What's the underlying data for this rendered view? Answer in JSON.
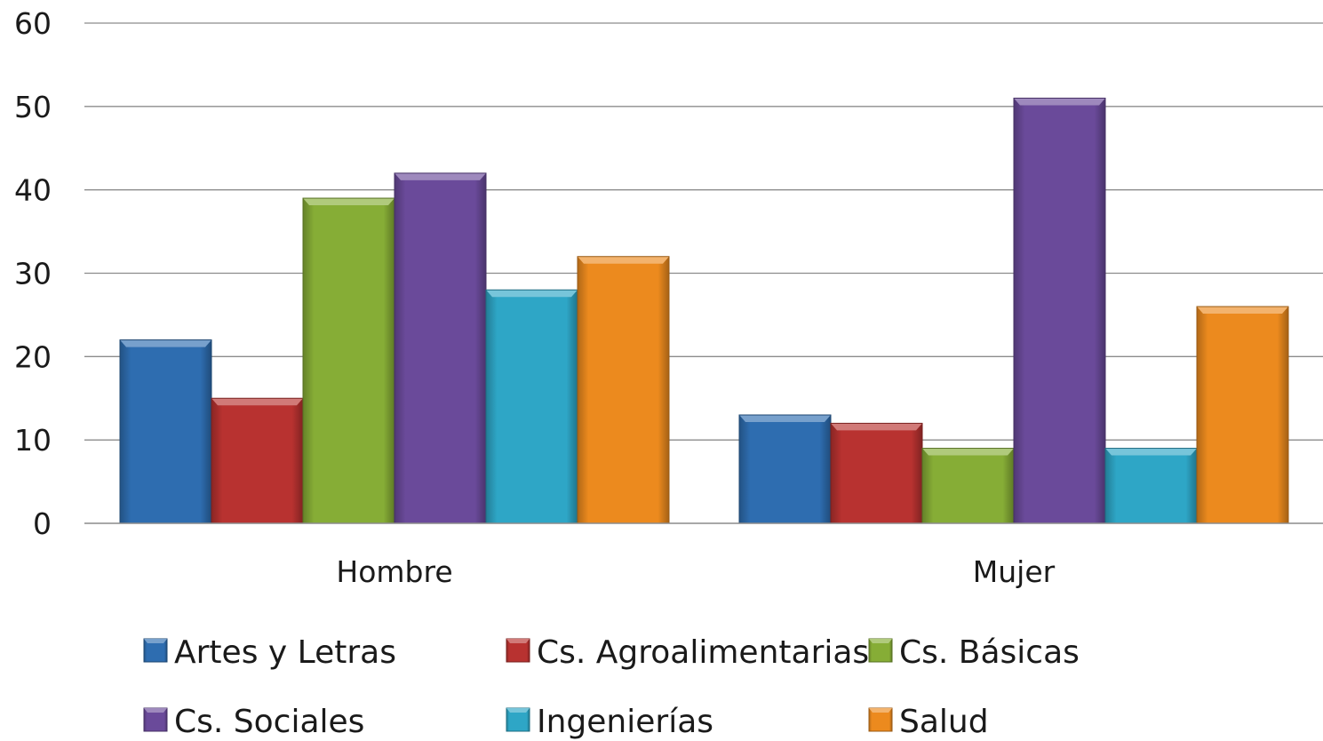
{
  "chart_data": {
    "type": "bar",
    "title": "",
    "xlabel": "",
    "ylabel": "",
    "categories": [
      "Hombre",
      "Mujer"
    ],
    "ylim": [
      0,
      60
    ],
    "yticks": [
      0,
      10,
      20,
      30,
      40,
      50,
      60
    ],
    "grid": true,
    "legend_position": "bottom",
    "series": [
      {
        "name": "Artes y Letras",
        "values": [
          22,
          13
        ],
        "color": "#2e6db0"
      },
      {
        "name": "Cs. Agroalimentarias",
        "values": [
          15,
          12
        ],
        "color": "#b83230"
      },
      {
        "name": "Cs. Básicas",
        "values": [
          39,
          9
        ],
        "color": "#86ad36"
      },
      {
        "name": "Cs. Sociales",
        "values": [
          42,
          51
        ],
        "color": "#6a4a9a"
      },
      {
        "name": "Ingenierías",
        "values": [
          28,
          9
        ],
        "color": "#2ea6c6"
      },
      {
        "name": "Salud",
        "values": [
          32,
          26
        ],
        "color": "#ec8a1e"
      }
    ]
  }
}
